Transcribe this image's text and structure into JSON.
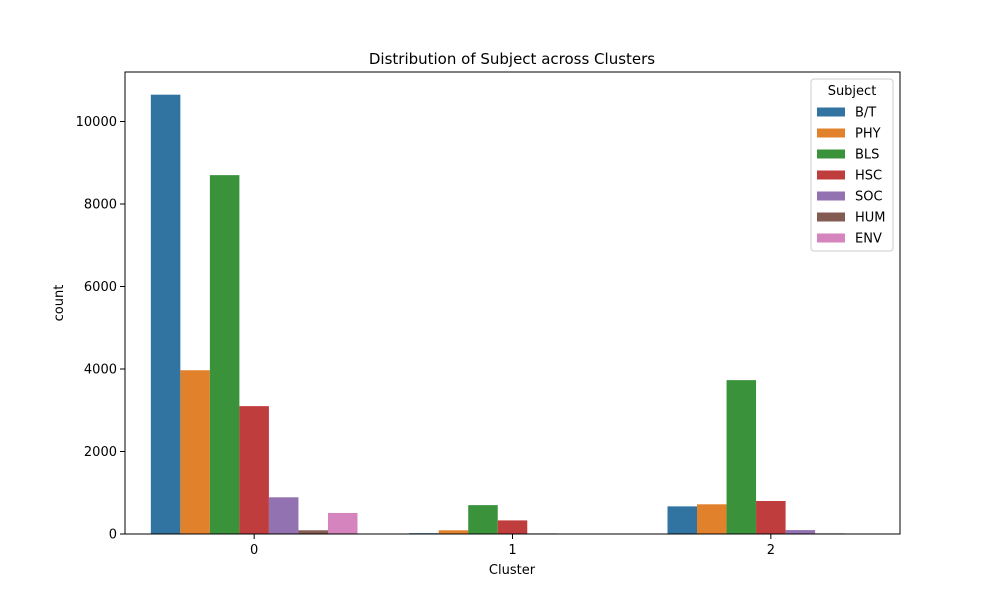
{
  "chart_data": {
    "type": "bar",
    "title": "Distribution of Subject across Clusters",
    "xlabel": "Cluster",
    "ylabel": "count",
    "categories": [
      "0",
      "1",
      "2"
    ],
    "ylim": [
      0,
      11200
    ],
    "yticks": [
      0,
      2000,
      4000,
      6000,
      8000,
      10000
    ],
    "grid": false,
    "legend": {
      "title": "Subject",
      "placement": "top-right"
    },
    "series": [
      {
        "name": "B/T",
        "color": "#3274a1",
        "values": [
          10650,
          20,
          670
        ]
      },
      {
        "name": "PHY",
        "color": "#e1812c",
        "values": [
          3970,
          90,
          720
        ]
      },
      {
        "name": "BLS",
        "color": "#3a923a",
        "values": [
          8700,
          700,
          3730
        ]
      },
      {
        "name": "HSC",
        "color": "#c03d3e",
        "values": [
          3100,
          330,
          800
        ]
      },
      {
        "name": "SOC",
        "color": "#9372b2",
        "values": [
          890,
          15,
          95
        ]
      },
      {
        "name": "HUM",
        "color": "#845b53",
        "values": [
          90,
          0,
          15
        ]
      },
      {
        "name": "ENV",
        "color": "#d684bd",
        "values": [
          510,
          0,
          10
        ]
      }
    ]
  }
}
